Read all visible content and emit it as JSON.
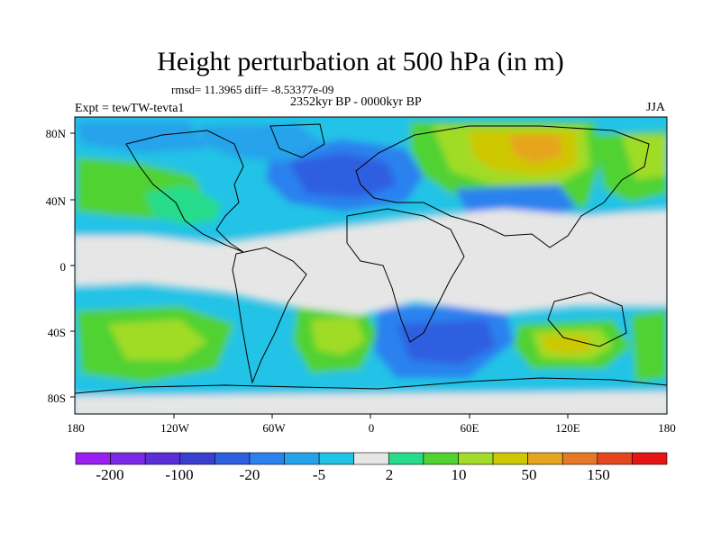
{
  "title": "Height perturbation at 500 hPa (in m)",
  "stats": "rmsd= 11.3965 diff= -8.53377e-09",
  "period": "2352kyr BP - 0000kyr BP",
  "experiment": "Expt = tewTW-tevta1",
  "season": "JJA",
  "lat_ticks": [
    "80N",
    "40N",
    "0",
    "40S",
    "80S"
  ],
  "lon_ticks": [
    "180",
    "120W",
    "60W",
    "0",
    "60E",
    "120E",
    "180"
  ],
  "colorbar": {
    "labels": [
      "-200",
      "-100",
      "-20",
      "-5",
      "2",
      "10",
      "50",
      "150"
    ],
    "colors": [
      "#9a1ff0",
      "#7a2ae6",
      "#5b2fd8",
      "#3a3fcf",
      "#2d5fe0",
      "#2a82ef",
      "#25a3ea",
      "#21c3e6",
      "#e6e6e6",
      "#26dc8a",
      "#50d230",
      "#a0dc28",
      "#cdc800",
      "#e6a51e",
      "#e67828",
      "#e6461e",
      "#e61414"
    ]
  },
  "palette": {
    "neutral": "#e6e6e6",
    "cyan": "#21c3e6",
    "lightblue": "#25a3ea",
    "blue": "#2a82ef",
    "darkblue": "#2d5fe0",
    "teal": "#26dc8a",
    "green": "#50d230",
    "yellowgreen": "#a0dc28",
    "yellow": "#cdc800",
    "orange": "#e6a51e"
  }
}
